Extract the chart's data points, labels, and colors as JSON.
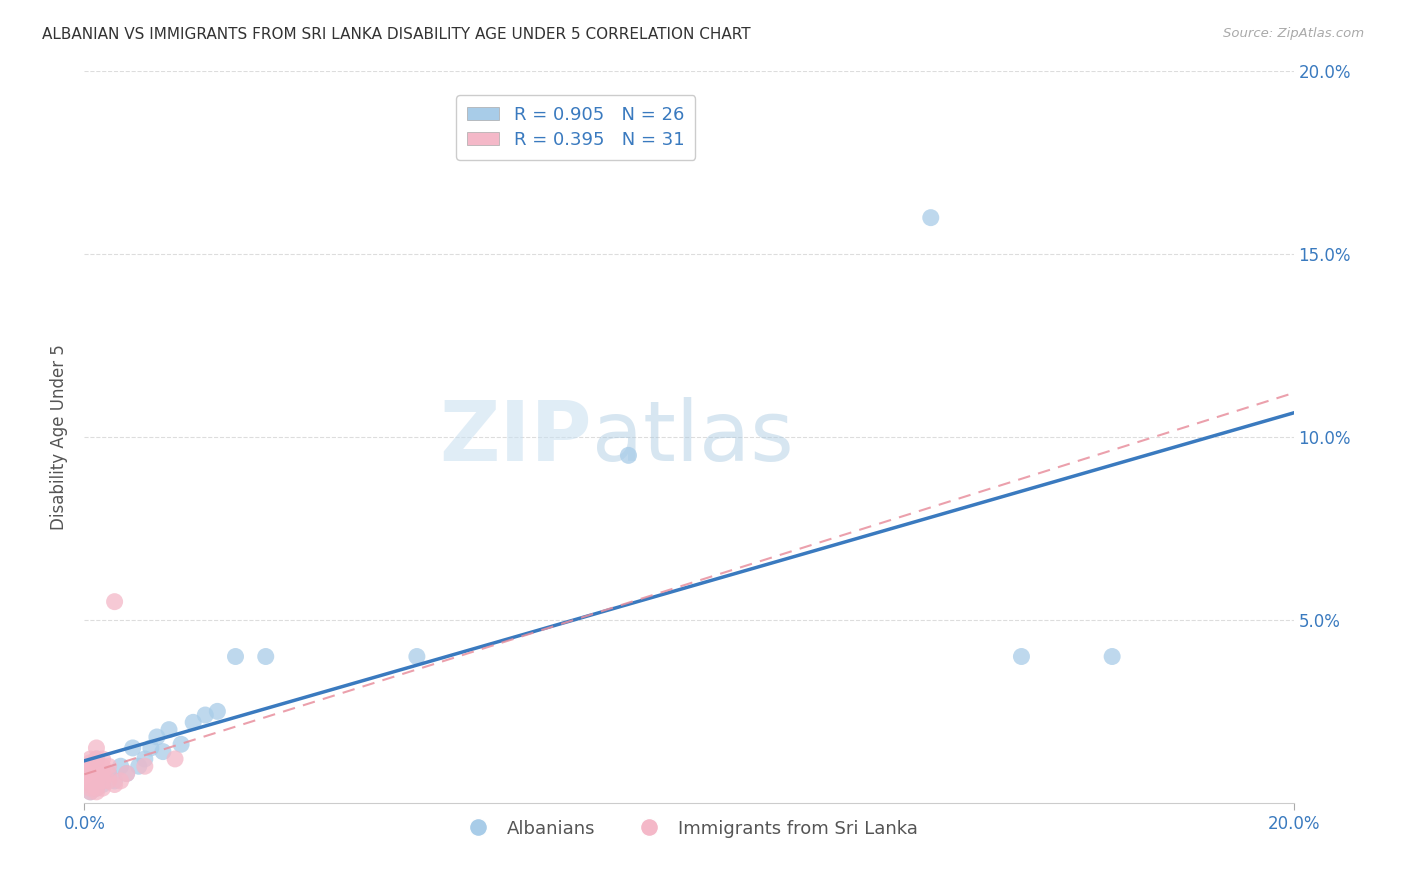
{
  "title": "ALBANIAN VS IMMIGRANTS FROM SRI LANKA DISABILITY AGE UNDER 5 CORRELATION CHART",
  "source": "Source: ZipAtlas.com",
  "ylabel": "Disability Age Under 5",
  "legend_blue_r": "R = 0.905",
  "legend_blue_n": "N = 26",
  "legend_pink_r": "R = 0.395",
  "legend_pink_n": "N = 31",
  "blue_color": "#a8cce8",
  "pink_color": "#f4b8c8",
  "blue_line_color": "#3a7abf",
  "pink_line_color": "#e8909e",
  "watermark_zip": "ZIP",
  "watermark_atlas": "atlas",
  "blue_scatter_x": [
    0.001,
    0.002,
    0.002,
    0.003,
    0.004,
    0.005,
    0.006,
    0.007,
    0.008,
    0.009,
    0.01,
    0.011,
    0.012,
    0.013,
    0.014,
    0.016,
    0.018,
    0.02,
    0.022,
    0.025,
    0.03,
    0.055,
    0.09,
    0.14,
    0.155,
    0.17
  ],
  "blue_scatter_y": [
    0.003,
    0.004,
    0.012,
    0.005,
    0.008,
    0.006,
    0.01,
    0.008,
    0.015,
    0.01,
    0.012,
    0.015,
    0.018,
    0.014,
    0.02,
    0.016,
    0.022,
    0.024,
    0.025,
    0.04,
    0.04,
    0.04,
    0.095,
    0.16,
    0.04,
    0.04
  ],
  "pink_scatter_x": [
    0.001,
    0.001,
    0.001,
    0.001,
    0.001,
    0.001,
    0.001,
    0.001,
    0.001,
    0.001,
    0.002,
    0.002,
    0.002,
    0.002,
    0.002,
    0.002,
    0.002,
    0.003,
    0.003,
    0.003,
    0.003,
    0.003,
    0.004,
    0.004,
    0.004,
    0.005,
    0.005,
    0.006,
    0.007,
    0.01,
    0.015
  ],
  "pink_scatter_y": [
    0.003,
    0.004,
    0.005,
    0.006,
    0.007,
    0.008,
    0.009,
    0.01,
    0.011,
    0.012,
    0.003,
    0.004,
    0.006,
    0.008,
    0.01,
    0.012,
    0.015,
    0.004,
    0.006,
    0.008,
    0.01,
    0.012,
    0.006,
    0.008,
    0.01,
    0.005,
    0.055,
    0.006,
    0.008,
    0.01,
    0.012
  ],
  "xlim": [
    0.0,
    0.2
  ],
  "ylim": [
    0.0,
    0.2
  ],
  "ytick_vals": [
    0.05,
    0.1,
    0.15,
    0.2
  ],
  "xtick_vals": [
    0.0,
    0.2
  ],
  "grid_color": "#dddddd",
  "background_color": "#ffffff",
  "tick_label_color": "#3a7abf",
  "title_color": "#333333",
  "source_color": "#aaaaaa",
  "ylabel_color": "#555555"
}
